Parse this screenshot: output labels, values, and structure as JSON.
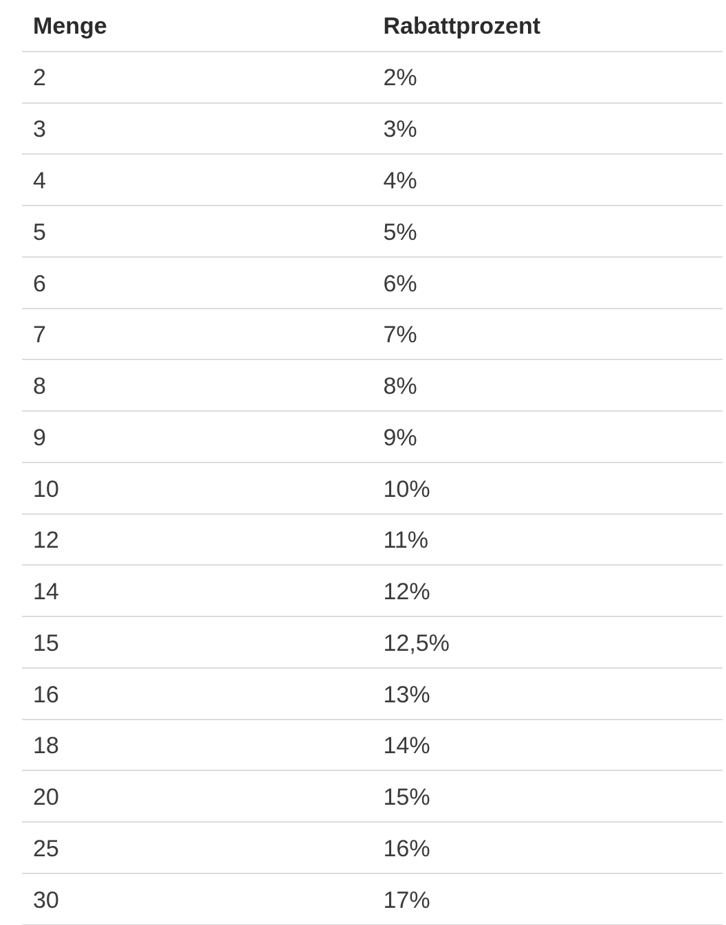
{
  "table": {
    "columns": [
      "Menge",
      "Rabattprozent"
    ],
    "rows": [
      [
        "2",
        "2%"
      ],
      [
        "3",
        "3%"
      ],
      [
        "4",
        "4%"
      ],
      [
        "5",
        "5%"
      ],
      [
        "6",
        "6%"
      ],
      [
        "7",
        "7%"
      ],
      [
        "8",
        "8%"
      ],
      [
        "9",
        "9%"
      ],
      [
        "10",
        "10%"
      ],
      [
        "12",
        "11%"
      ],
      [
        "14",
        "12%"
      ],
      [
        "15",
        "12,5%"
      ],
      [
        "16",
        "13%"
      ],
      [
        "18",
        "14%"
      ],
      [
        "20",
        "15%"
      ],
      [
        "25",
        "16%"
      ],
      [
        "30",
        "17%"
      ]
    ]
  },
  "colors": {
    "background": "#ffffff",
    "header_text": "#2b2b2b",
    "body_text": "#3b3b3b",
    "divider": "#dcdcdc"
  }
}
